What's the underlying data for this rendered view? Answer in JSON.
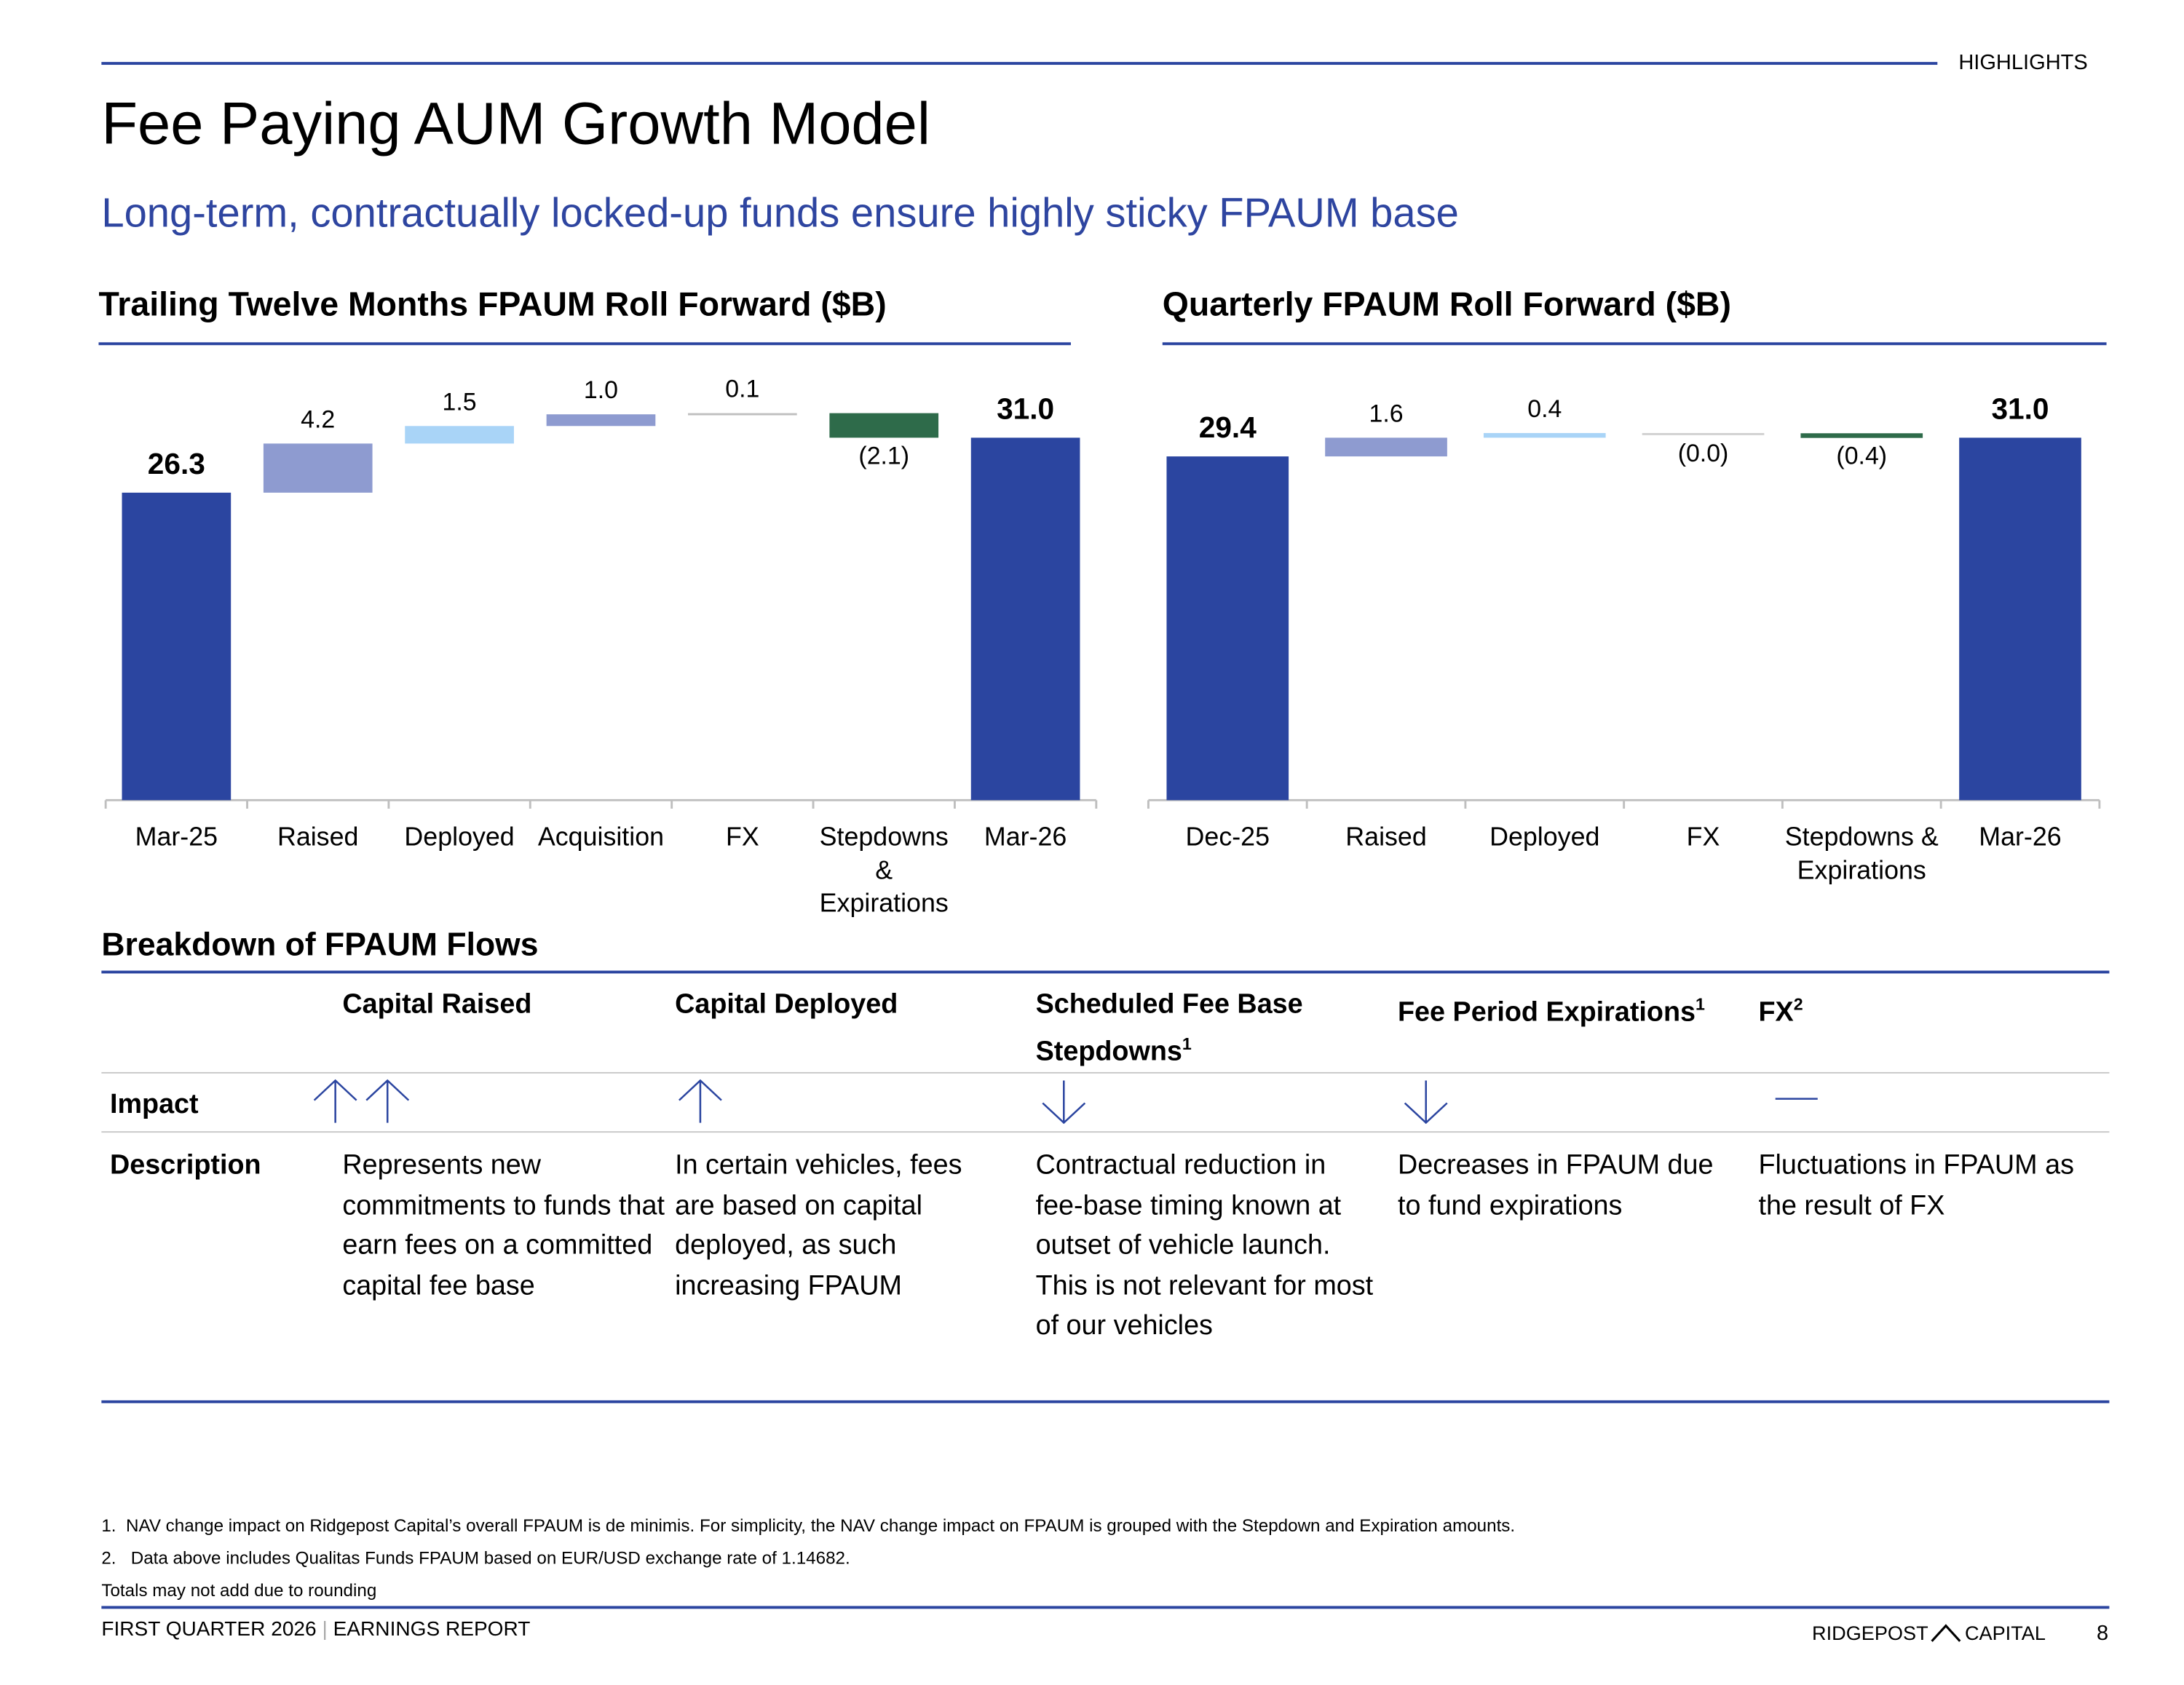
{
  "header": {
    "section": "HIGHLIGHTS",
    "title": "Fee Paying AUM Growth Model",
    "subtitle": "Long-term, contractually locked-up funds ensure highly sticky FPAUM base"
  },
  "chart_data": [
    {
      "type": "waterfall",
      "title": "Trailing Twelve Months FPAUM Roll Forward ($B)",
      "categories": [
        "Mar-25",
        "Raised",
        "Deployed",
        "Acquisition",
        "FX",
        "Stepdowns & Expirations",
        "Mar-26"
      ],
      "values": [
        26.3,
        4.2,
        1.5,
        1.0,
        0.1,
        -2.1,
        31.0
      ],
      "value_labels": [
        "26.3",
        "4.2",
        "1.5",
        "1.0",
        "0.1",
        "(2.1)",
        "31.0"
      ],
      "colors": [
        "#2b45a0",
        "#8e9bd0",
        "#a9d4f7",
        "#8e9bd0",
        "#bfbfbf",
        "#2e6b4a",
        "#2b45a0"
      ]
    },
    {
      "type": "waterfall",
      "title": "Quarterly FPAUM Roll Forward ($B)",
      "categories": [
        "Dec-25",
        "Raised",
        "Deployed",
        "FX",
        "Stepdowns & Expirations",
        "Mar-26"
      ],
      "values": [
        29.4,
        1.6,
        0.4,
        -0.02,
        -0.4,
        31.0
      ],
      "value_labels": [
        "29.4",
        "1.6",
        "0.4",
        "(0.0)",
        "(0.4)",
        "31.0"
      ],
      "colors": [
        "#2b45a0",
        "#8e9bd0",
        "#a9d4f7",
        "#d0d0d0",
        "#2e6b4a",
        "#2b45a0"
      ]
    }
  ],
  "table": {
    "title": "Breakdown of FPAUM Flows",
    "columns": [
      {
        "text": "Capital Raised"
      },
      {
        "text": "Capital Deployed"
      },
      {
        "text": "Scheduled Fee Base Stepdowns",
        "note": "1"
      },
      {
        "text": "Fee Period Expirations",
        "note": "1"
      },
      {
        "text": "FX",
        "note": "2"
      }
    ],
    "impact_label": "Impact",
    "description_label": "Description",
    "descriptions": [
      "Represents new commitments to funds that earn fees on a committed capital fee base",
      "In certain vehicles, fees are based on capital deployed, as such increasing FPAUM",
      "Contractual reduction in fee-base timing known at outset of vehicle launch. This is not relevant for most of our vehicles",
      "Decreases in FPAUM due to fund expirations",
      "Fluctuations in FPAUM as the result of FX"
    ]
  },
  "footnotes": [
    {
      "number": "1.",
      "text": "NAV change impact on Ridgepost Capital’s overall FPAUM is de minimis. For simplicity, the NAV change impact on FPAUM is grouped with the Stepdown and Expiration amounts."
    },
    {
      "number": "2.",
      "text": "Data above includes Qualitas Funds FPAUM based on EUR/USD exchange rate of 1.14682."
    }
  ],
  "rounding_note": "Totals may not add due to rounding",
  "footer": {
    "report": "FIRST QUARTER 2026",
    "section": "EARNINGS REPORT",
    "brand_left": "RIDGEPOST",
    "brand_right": "CAPITAL",
    "page": "8"
  }
}
